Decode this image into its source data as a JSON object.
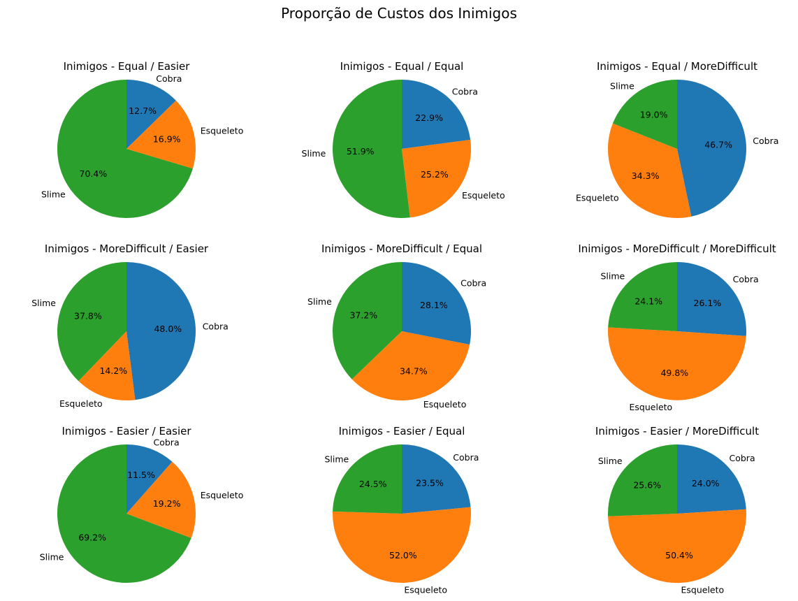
{
  "suptitle": "Proporção de Custos dos Inimigos",
  "colors": {
    "Cobra": "#1f77b4",
    "Esqueleto": "#ff7f0e",
    "Slime": "#2ca02c"
  },
  "chart_data": [
    {
      "type": "pie",
      "title": "Inimigos - Equal / Easier",
      "labels": [
        "Cobra",
        "Esqueleto",
        "Slime"
      ],
      "values": [
        12.7,
        16.9,
        70.4
      ],
      "value_labels": [
        "12.7%",
        "16.9%",
        "70.4%"
      ]
    },
    {
      "type": "pie",
      "title": "Inimigos - Equal / Equal",
      "labels": [
        "Cobra",
        "Esqueleto",
        "Slime"
      ],
      "values": [
        22.9,
        25.2,
        51.9
      ],
      "value_labels": [
        "22.9%",
        "25.2%",
        "51.9%"
      ]
    },
    {
      "type": "pie",
      "title": "Inimigos - Equal / MoreDifficult",
      "labels": [
        "Cobra",
        "Esqueleto",
        "Slime"
      ],
      "values": [
        46.7,
        34.3,
        19.0
      ],
      "value_labels": [
        "46.7%",
        "34.3%",
        "19.0%"
      ]
    },
    {
      "type": "pie",
      "title": "Inimigos - MoreDifficult / Easier",
      "labels": [
        "Cobra",
        "Esqueleto",
        "Slime"
      ],
      "values": [
        48.0,
        14.2,
        37.8
      ],
      "value_labels": [
        "48.0%",
        "14.2%",
        "37.8%"
      ]
    },
    {
      "type": "pie",
      "title": "Inimigos - MoreDifficult / Equal",
      "labels": [
        "Cobra",
        "Esqueleto",
        "Slime"
      ],
      "values": [
        28.1,
        34.7,
        37.2
      ],
      "value_labels": [
        "28.1%",
        "34.7%",
        "37.2%"
      ]
    },
    {
      "type": "pie",
      "title": "Inimigos - MoreDifficult / MoreDifficult",
      "labels": [
        "Cobra",
        "Esqueleto",
        "Slime"
      ],
      "values": [
        26.1,
        49.8,
        24.1
      ],
      "value_labels": [
        "26.1%",
        "49.8%",
        "24.1%"
      ]
    },
    {
      "type": "pie",
      "title": "Inimigos - Easier / Easier",
      "labels": [
        "Cobra",
        "Esqueleto",
        "Slime"
      ],
      "values": [
        11.5,
        19.2,
        69.2
      ],
      "value_labels": [
        "11.5%",
        "19.2%",
        "69.2%"
      ]
    },
    {
      "type": "pie",
      "title": "Inimigos - Easier / Equal",
      "labels": [
        "Cobra",
        "Esqueleto",
        "Slime"
      ],
      "values": [
        23.5,
        52.0,
        24.5
      ],
      "value_labels": [
        "23.5%",
        "52.0%",
        "24.5%"
      ]
    },
    {
      "type": "pie",
      "title": "Inimigos - Easier / MoreDifficult",
      "labels": [
        "Cobra",
        "Esqueleto",
        "Slime"
      ],
      "values": [
        24.0,
        50.4,
        25.6
      ],
      "value_labels": [
        "24.0%",
        "50.4%",
        "25.6%"
      ]
    }
  ]
}
